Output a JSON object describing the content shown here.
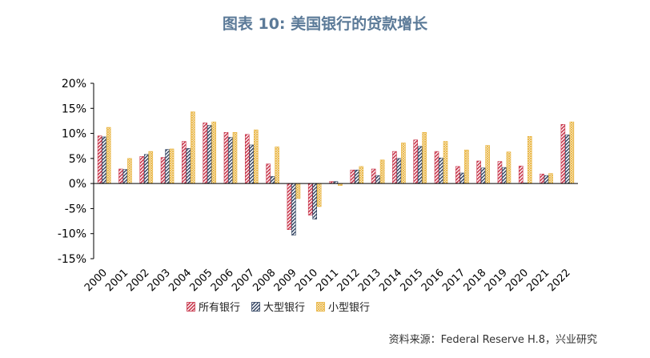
{
  "title": "图表 10: 美国银行的贷款增长",
  "source": "资料来源：Federal Reserve H.8，兴业研究",
  "colors": {
    "all_banks": "#c8364b",
    "large_banks": "#2d3f5e",
    "small_banks": "#e8b23a",
    "axis": "#000000"
  },
  "chart_data": {
    "type": "bar",
    "categories": [
      "2000",
      "2001",
      "2002",
      "2003",
      "2004",
      "2005",
      "2006",
      "2007",
      "2008",
      "2009",
      "2010",
      "2011",
      "2012",
      "2013",
      "2014",
      "2015",
      "2016",
      "2017",
      "2018",
      "2019",
      "2020",
      "2021",
      "2022"
    ],
    "series": [
      {
        "name": "所有银行",
        "pattern": "diagonal-stripe",
        "values": [
          9.5,
          2.9,
          5.4,
          5.2,
          8.4,
          12.1,
          10.2,
          9.8,
          3.9,
          -9.2,
          -6.3,
          0.4,
          2.7,
          2.9,
          6.4,
          8.7,
          6.4,
          3.4,
          4.5,
          4.4,
          3.5,
          1.9,
          11.8
        ]
      },
      {
        "name": "大型银行",
        "pattern": "diagonal-stripe",
        "values": [
          9.3,
          2.8,
          5.8,
          6.8,
          7.0,
          11.6,
          9.2,
          7.7,
          1.4,
          -10.3,
          -7.1,
          0.4,
          2.7,
          1.6,
          5.0,
          7.4,
          5.1,
          2.1,
          3.1,
          3.2,
          0.1,
          1.6,
          9.7
        ]
      },
      {
        "name": "小型银行",
        "pattern": "crosshatch",
        "values": [
          11.2,
          5.0,
          6.4,
          6.9,
          14.3,
          12.3,
          10.2,
          10.7,
          7.3,
          -3.0,
          -4.6,
          -0.4,
          3.4,
          4.7,
          8.1,
          10.2,
          8.4,
          6.7,
          7.6,
          6.3,
          9.4,
          2.0,
          12.3
        ]
      }
    ],
    "ylim": [
      -15,
      20
    ],
    "yticks": [
      -15,
      -10,
      -5,
      0,
      5,
      10,
      15,
      20
    ],
    "ytick_labels": [
      "-15%",
      "-10%",
      "-5%",
      "0%",
      "5%",
      "10%",
      "15%",
      "20%"
    ],
    "legend_position": "bottom",
    "grid": false
  }
}
